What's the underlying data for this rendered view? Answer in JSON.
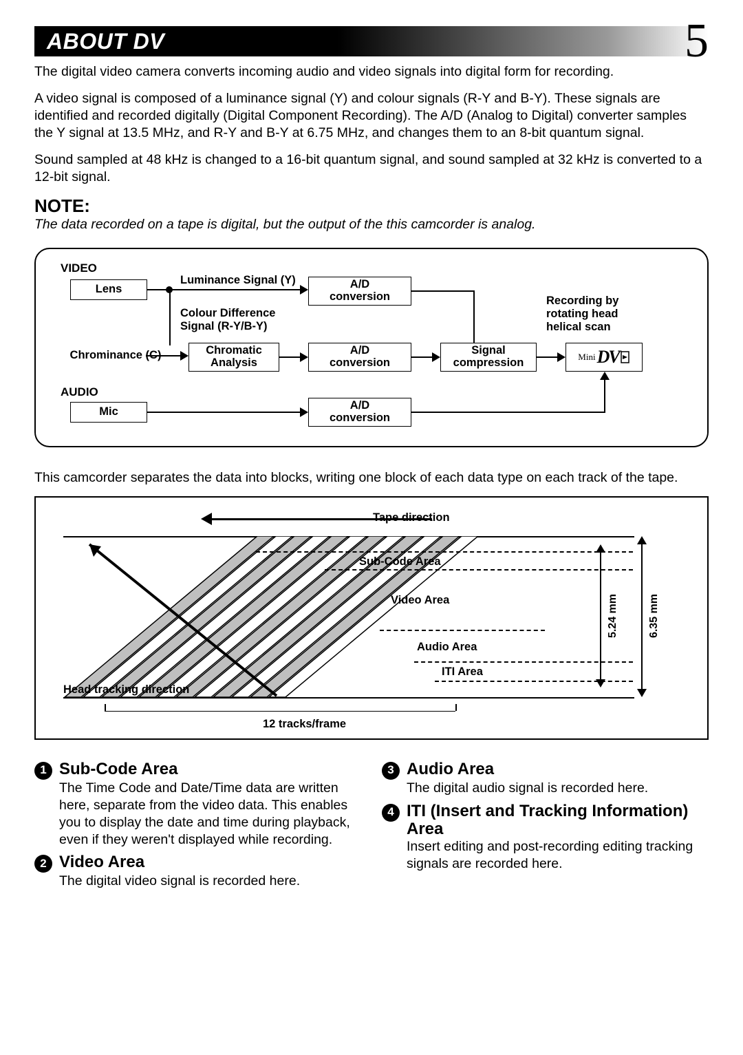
{
  "page_number": "5",
  "header_title": "ABOUT DV",
  "intro_paragraphs": [
    "The digital video camera converts incoming audio and video signals into digital form for recording.",
    "A video signal is composed of a luminance signal (Y) and colour signals (R-Y and B-Y). These signals are identified and recorded digitally (Digital Component Recording). The A/D (Analog to Digital) converter samples the Y signal at 13.5 MHz, and R-Y and B-Y at 6.75 MHz, and changes them to an 8-bit quantum signal.",
    "Sound sampled at 48 kHz is changed to a 16-bit quantum signal, and sound sampled at 32 kHz is converted to a 12-bit signal."
  ],
  "note_label": "NOTE:",
  "note_text": "The data recorded on a tape is digital, but the output of the this camcorder is analog.",
  "mid_paragraph": "This camcorder separates the data into blocks, writing one block of each data type on each track of the tape.",
  "diagram1": {
    "video_label": "VIDEO",
    "audio_label": "AUDIO",
    "lens": "Lens",
    "mic": "Mic",
    "chrominance": "Chrominance (C)",
    "luminance": "Luminance Signal (Y)",
    "colour_diff_l1": "Colour Difference",
    "colour_diff_l2": "Signal (R-Y/B-Y)",
    "chromatic_analysis": "Chromatic\nAnalysis",
    "ad_conversion": "A/D\nconversion",
    "signal_compression": "Signal\ncompression",
    "recording_l1": "Recording by",
    "recording_l2": "rotating head",
    "recording_l3": "helical scan",
    "minidv_mini": "Mini",
    "minidv_dv": "DV"
  },
  "diagram2": {
    "tape_direction": "Tape direction",
    "subcode_area": "Sub-Code Area",
    "video_area": "Video Area",
    "audio_area": "Audio Area",
    "iti_area": "ITI Area",
    "head_tracking": "Head tracking direction",
    "tracks_frame": "12 tracks/frame",
    "dim_524": "5.24 mm",
    "dim_635": "6.35 mm",
    "track_colors": [
      "#bfbfbf",
      "#ffffff"
    ],
    "track_count": 12
  },
  "sections": [
    {
      "num": "1",
      "title": "Sub-Code Area",
      "body": "The Time Code and Date/Time data are written here, separate from the video data. This enables you to display the date and time during playback, even if they weren't displayed while recording."
    },
    {
      "num": "2",
      "title": "Video Area",
      "body": "The digital video signal is recorded here."
    },
    {
      "num": "3",
      "title": "Audio Area",
      "body": "The digital audio signal is recorded here."
    },
    {
      "num": "4",
      "title": "ITI (Insert and Tracking Information) Area",
      "body": "Insert editing and post-recording editing tracking signals are recorded here."
    }
  ]
}
